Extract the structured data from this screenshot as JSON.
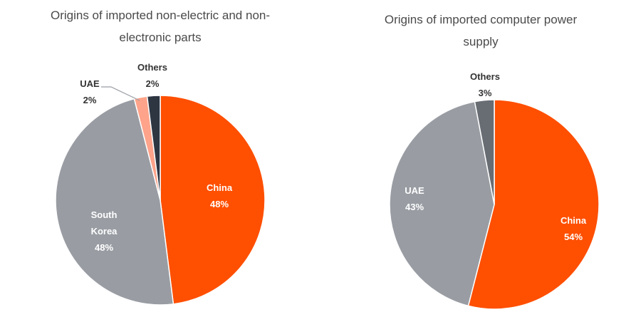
{
  "chart_data": [
    {
      "type": "pie",
      "title": "Origins of imported non-electric and non-electronic parts",
      "title_lines": [
        "Origins of imported non-electric and non-",
        "electronic parts"
      ],
      "slices": [
        {
          "label": "China",
          "value": 48,
          "value_label": "48%",
          "color": "#ff4f00",
          "text_color": "#ffffff"
        },
        {
          "label": "South Korea",
          "label_lines": [
            "South",
            "Korea"
          ],
          "value": 48,
          "value_label": "48%",
          "color": "#999da3",
          "text_color": "#ffffff"
        },
        {
          "label": "UAE",
          "value": 2,
          "value_label": "2%",
          "color": "#ffa38a",
          "text_color": "#333333"
        },
        {
          "label": "Others",
          "value": 2,
          "value_label": "2%",
          "color": "#2e3642",
          "text_color": "#333333"
        }
      ]
    },
    {
      "type": "pie",
      "title": "Origins of imported computer power supply",
      "title_lines": [
        "Origins of imported computer power",
        "supply"
      ],
      "slices": [
        {
          "label": "China",
          "value": 54,
          "value_label": "54%",
          "color": "#ff4f00",
          "text_color": "#ffffff"
        },
        {
          "label": "UAE",
          "value": 43,
          "value_label": "43%",
          "color": "#999da3",
          "text_color": "#ffffff"
        },
        {
          "label": "Others",
          "value": 3,
          "value_label": "3%",
          "color": "#686d74",
          "text_color": "#333333"
        }
      ]
    }
  ]
}
